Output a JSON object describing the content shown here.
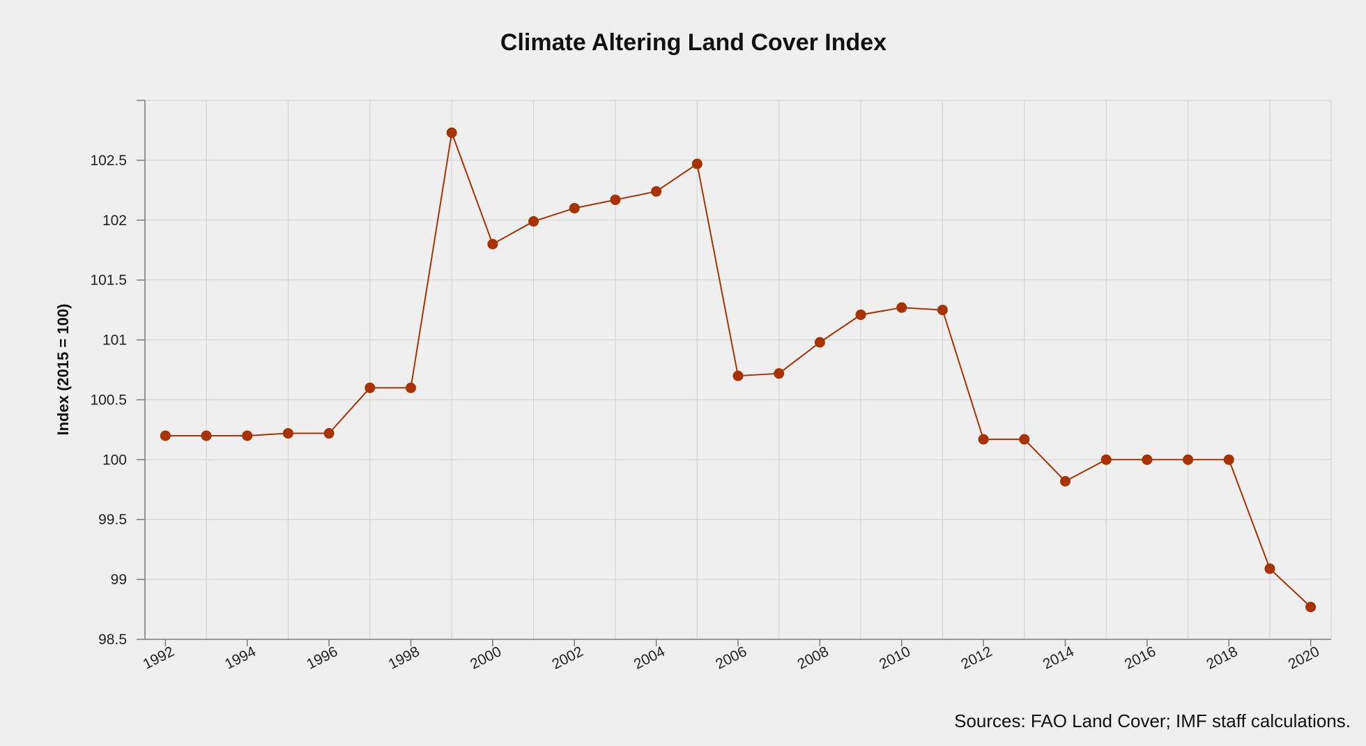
{
  "chart_data": {
    "type": "line",
    "title": "Climate Altering Land Cover Index",
    "xlabel": "",
    "ylabel": "Index (2015 = 100)",
    "source": "Sources: FAO Land Cover; IMF staff calculations.",
    "x": [
      1992,
      1993,
      1994,
      1995,
      1996,
      1997,
      1998,
      1999,
      2000,
      2001,
      2002,
      2003,
      2004,
      2005,
      2006,
      2007,
      2008,
      2009,
      2010,
      2011,
      2012,
      2013,
      2014,
      2015,
      2016,
      2017,
      2018,
      2019,
      2020
    ],
    "x_tick_labels": [
      "1992",
      "1994",
      "1996",
      "1998",
      "2000",
      "2002",
      "2004",
      "2006",
      "2008",
      "2010",
      "2012",
      "2014",
      "2016",
      "2018",
      "2020"
    ],
    "y_tick_labels": [
      "98.5",
      "99",
      "99.5",
      "100",
      "100.5",
      "101",
      "101.5",
      "102",
      "102.5"
    ],
    "xlim": [
      1991.5,
      2020.5
    ],
    "ylim": [
      98.5,
      103
    ],
    "grid": true,
    "series": [
      {
        "color": "#a83200",
        "values": [
          100.2,
          100.2,
          100.2,
          100.22,
          100.22,
          100.6,
          100.6,
          102.73,
          101.8,
          101.99,
          102.1,
          102.17,
          102.24,
          102.47,
          100.7,
          100.72,
          100.98,
          101.21,
          101.27,
          101.25,
          100.17,
          100.17,
          99.82,
          100.0,
          100.0,
          100.0,
          100.0,
          99.09,
          98.77
        ]
      }
    ]
  }
}
